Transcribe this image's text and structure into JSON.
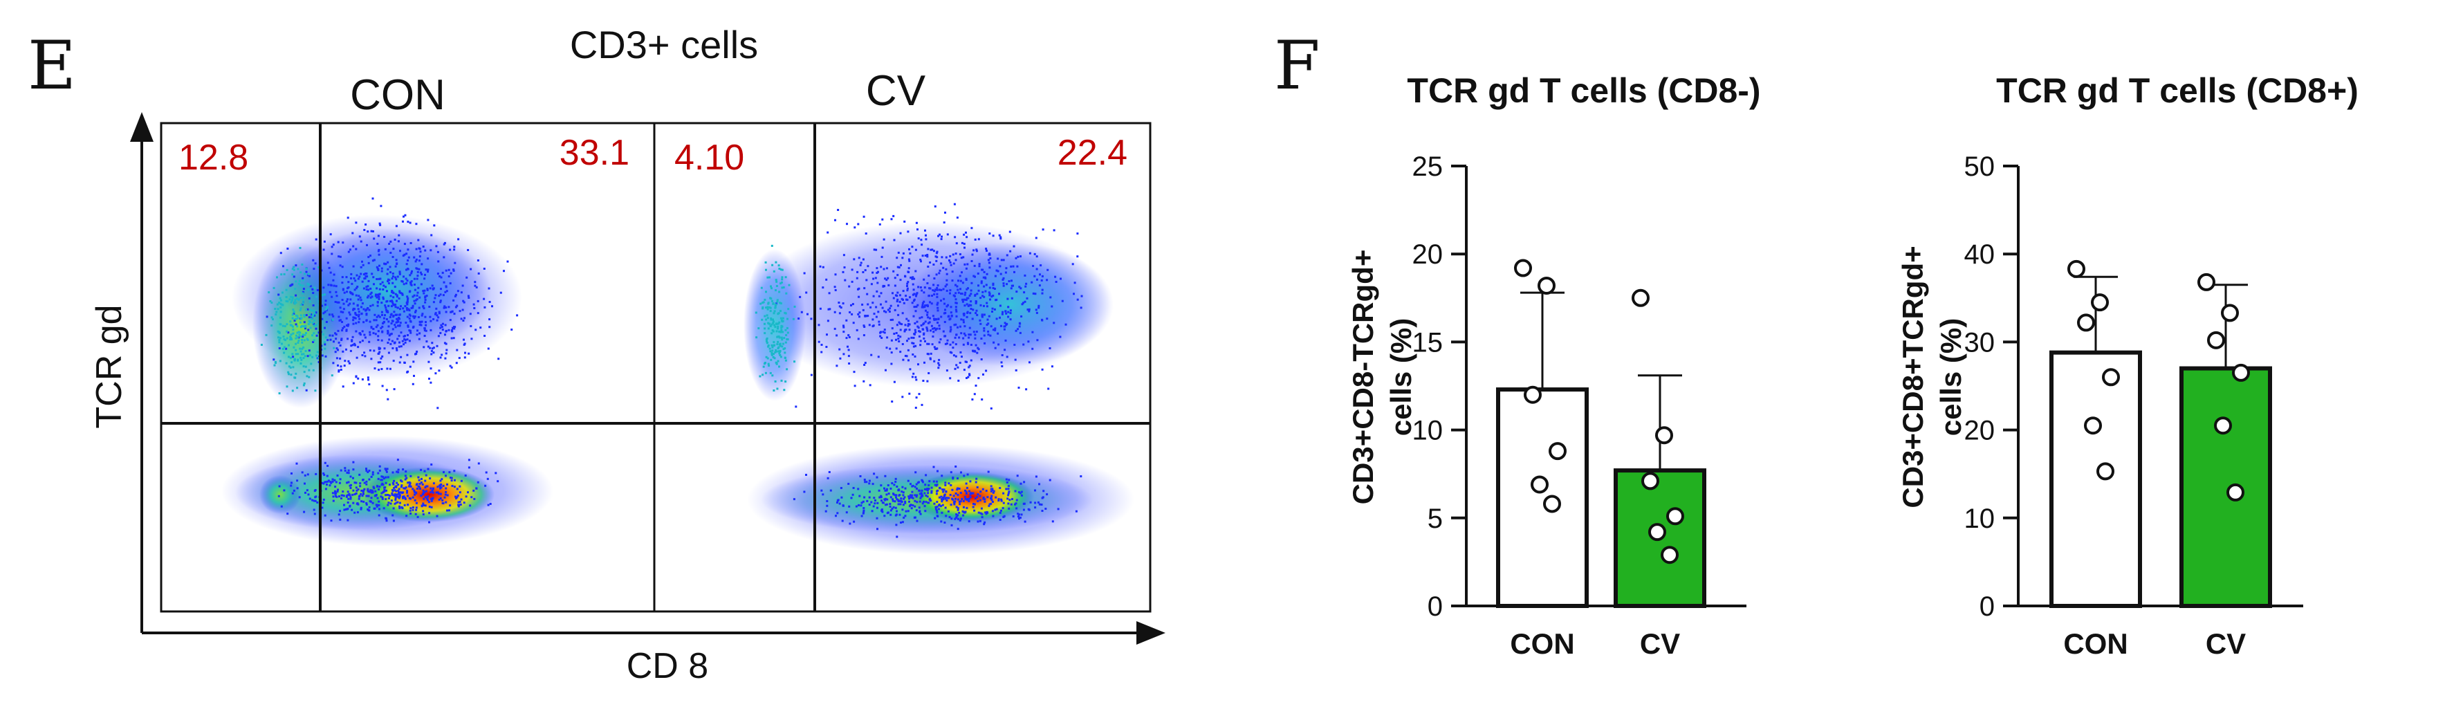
{
  "panels": {
    "E": "E",
    "F": "F"
  },
  "colors": {
    "quadrant_label": "#c00000",
    "cv_bar": "#22b020",
    "con_bar": "#ffffff",
    "axis": "#111111"
  },
  "chart_data": [
    {
      "type": "scatter",
      "subtype": "flow-cytometry-density",
      "title": "CD3+ cells",
      "xlabel": "CD 8",
      "ylabel": "TCR gd",
      "samples": [
        {
          "name": "CON",
          "quadrants": {
            "upper_left": "12.8",
            "upper_right": "33.1"
          }
        },
        {
          "name": "CV",
          "quadrants": {
            "upper_left": "4.10",
            "upper_right": "22.4"
          }
        }
      ]
    },
    {
      "type": "bar",
      "title": "TCR gd T cells (CD8-)",
      "ylabel_line1": "CD3+CD8-TCRgd+",
      "ylabel_line2": "cells  (%)",
      "categories": [
        "CON",
        "CV"
      ],
      "values": [
        12.3,
        7.7
      ],
      "errors": [
        5.5,
        5.4
      ],
      "points": [
        [
          19.2,
          18.2,
          12.0,
          8.8,
          6.9,
          5.8
        ],
        [
          17.5,
          9.7,
          7.1,
          5.1,
          4.2,
          2.9
        ]
      ],
      "ylim": [
        0,
        25
      ],
      "yticks": [
        0,
        5,
        10,
        15,
        20,
        25
      ]
    },
    {
      "type": "bar",
      "title": "TCR gd T cells (CD8+)",
      "ylabel_line1": "CD3+CD8+TCRgd+",
      "ylabel_line2": "cells  (%)",
      "categories": [
        "CON",
        "CV"
      ],
      "values": [
        28.8,
        27.0
      ],
      "errors": [
        8.6,
        9.5
      ],
      "points": [
        [
          38.3,
          34.5,
          32.2,
          26.0,
          20.5,
          15.3
        ],
        [
          36.8,
          33.3,
          30.2,
          26.5,
          20.5,
          12.9
        ]
      ],
      "ylim": [
        0,
        50
      ],
      "yticks": [
        0,
        10,
        20,
        30,
        40,
        50
      ]
    }
  ]
}
